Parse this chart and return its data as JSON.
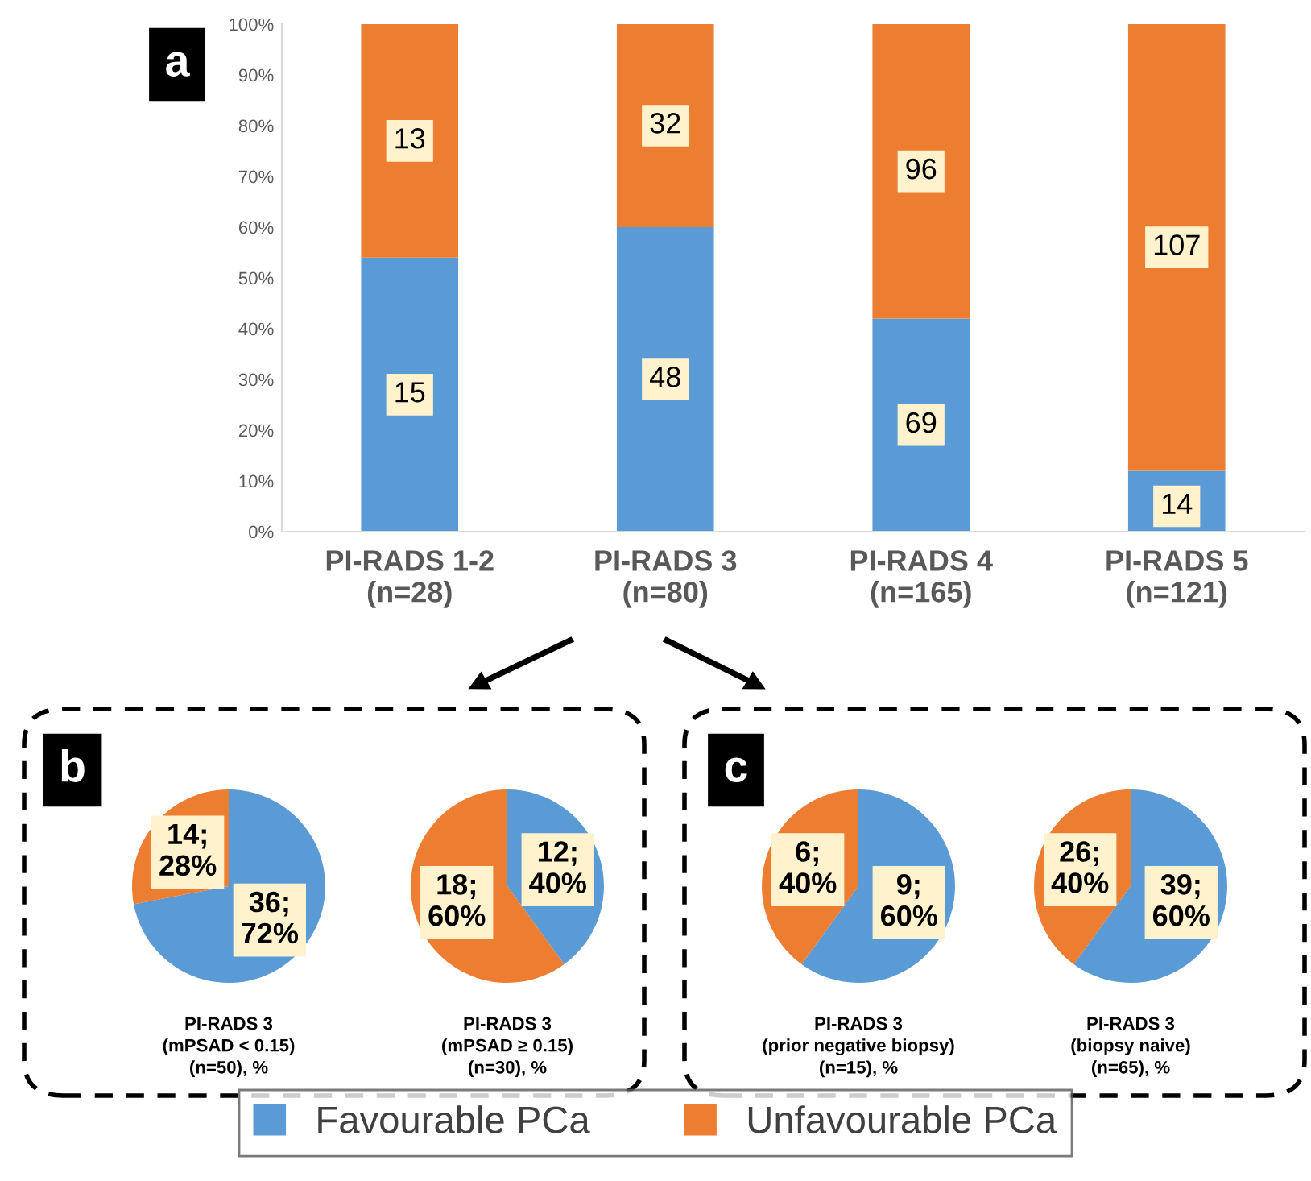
{
  "chart_data": [
    {
      "type": "bar",
      "stacked": true,
      "categories": [
        "PI-RADS 1-2\n(n=28)",
        "PI-RADS 3\n(n=80)",
        "PI-RADS 4\n(n=165)",
        "PI-RADS 5\n(n=121)"
      ],
      "series": [
        {
          "name": "Favourable PCa",
          "color": "#5b9bd5",
          "values": [
            54,
            60,
            42,
            12
          ]
        },
        {
          "name": "Unfavourable PCa",
          "color": "#ed7d31",
          "values": [
            46,
            40,
            58,
            88
          ]
        }
      ],
      "ylim": [
        0,
        100
      ],
      "yticks": [
        {
          "value": 0,
          "label": "0%"
        },
        {
          "value": 10,
          "label": "10%"
        },
        {
          "value": 20,
          "label": "20%"
        },
        {
          "value": 30,
          "label": "30%"
        },
        {
          "value": 40,
          "label": "40%"
        },
        {
          "value": 50,
          "label": "50%"
        },
        {
          "value": 60,
          "label": "60%"
        },
        {
          "value": 70,
          "label": "70%"
        },
        {
          "value": 80,
          "label": "80%"
        },
        {
          "value": 90,
          "label": "90%"
        },
        {
          "value": 100,
          "label": "100%"
        }
      ],
      "grid": false,
      "legend": "bottom",
      "annotations": [
        "a",
        {
          "text": "15",
          "x": "PI-RADS 1-2\n(n=28)",
          "y": 27
        },
        {
          "text": "48",
          "x": "PI-RADS 3\n(n=80)",
          "y": 30
        },
        {
          "text": "69",
          "x": "PI-RADS 4\n(n=165)",
          "y": 21
        },
        {
          "text": "14",
          "x": "PI-RADS 5\n(n=121)",
          "y": 5
        },
        {
          "text": "13",
          "x": "PI-RADS 1-2\n(n=28)",
          "y": 77
        },
        {
          "text": "32",
          "x": "PI-RADS 3\n(n=80)",
          "y": 80
        },
        {
          "text": "96",
          "x": "PI-RADS 4\n(n=165)",
          "y": 71
        },
        {
          "text": "107",
          "x": "PI-RADS 5\n(n=121)",
          "y": 56
        }
      ]
    },
    {
      "type": "pie",
      "title": "PI-RADS 3\n(mPSAD < 0.15)\n(n=50), %",
      "categories": [
        null,
        null
      ],
      "values": [
        36,
        14
      ],
      "colors": [
        "#5b9bd5",
        "#ed7d31"
      ],
      "value_labels": [
        "36;\n72%",
        "14;\n28%"
      ],
      "annotations": [
        "b"
      ]
    },
    {
      "type": "pie",
      "title": "PI-RADS 3\n(mPSAD ≥ 0.15)\n(n=30), %",
      "categories": [
        null,
        null
      ],
      "values": [
        12,
        18
      ],
      "colors": [
        "#5b9bd5",
        "#ed7d31"
      ],
      "value_labels": [
        "12;\n40%",
        "18;\n60%"
      ]
    },
    {
      "type": "pie",
      "title": "PI-RADS 3\n(prior negative biopsy)\n(n=15), %",
      "categories": [
        null,
        null
      ],
      "values": [
        9,
        6
      ],
      "colors": [
        "#5b9bd5",
        "#ed7d31"
      ],
      "value_labels": [
        "9;\n60%",
        "6;\n40%"
      ],
      "annotations": [
        "c"
      ]
    },
    {
      "type": "pie",
      "title": "PI-RADS 3\n(biopsy naive)\n(n=65), %",
      "categories": [
        null,
        null
      ],
      "values": [
        39,
        26
      ],
      "colors": [
        "#5b9bd5",
        "#ed7d31"
      ],
      "value_labels": [
        "39;\n60%",
        "26;\n40%"
      ]
    }
  ]
}
